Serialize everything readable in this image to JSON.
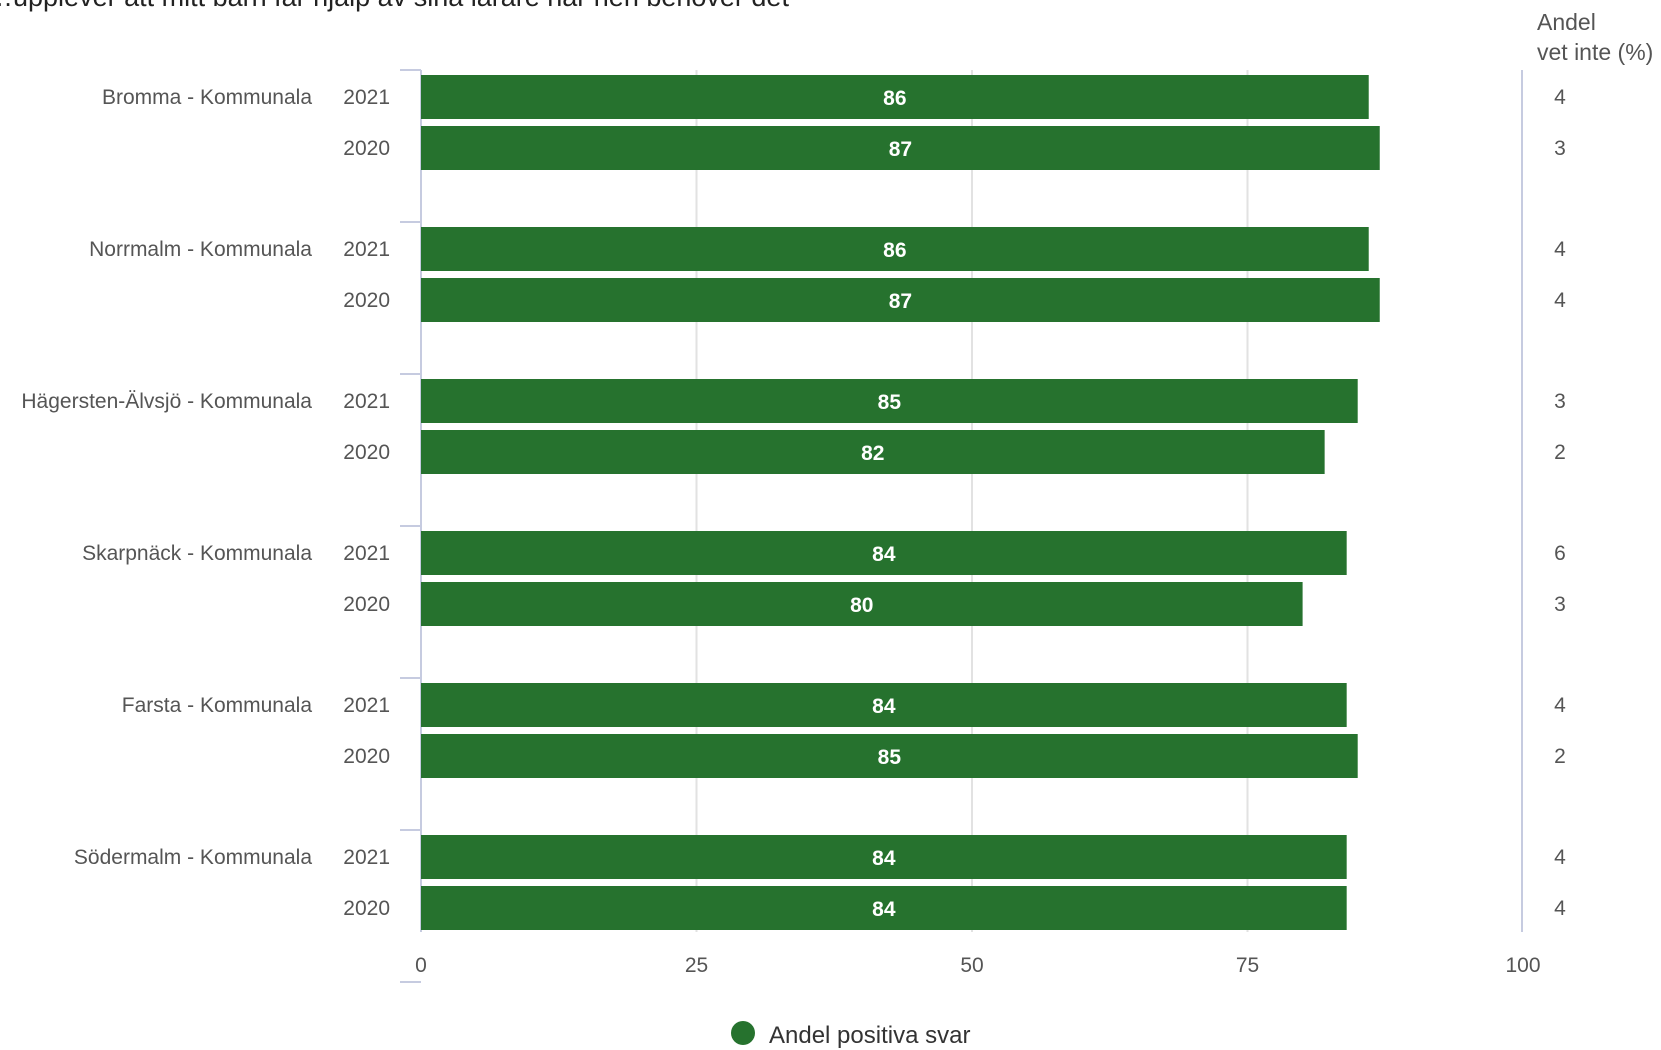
{
  "chart_data": {
    "type": "bar",
    "title": "…upplever att mitt barn får hjälp av sina lärare när hen behöver det",
    "xlim": [
      0,
      100
    ],
    "xticks": [
      "0",
      "25",
      "50",
      "75",
      "100"
    ],
    "grid": true,
    "legend_position": "bottom",
    "categories": [
      {
        "group": "Bromma - Kommunala",
        "years": [
          "2021",
          "2020"
        ],
        "values": [
          86,
          87
        ],
        "vet_inte": [
          4,
          3
        ]
      },
      {
        "group": "Norrmalm - Kommunala",
        "years": [
          "2021",
          "2020"
        ],
        "values": [
          86,
          87
        ],
        "vet_inte": [
          4,
          4
        ]
      },
      {
        "group": "Hägersten-Älvsjö - Kommunala",
        "years": [
          "2021",
          "2020"
        ],
        "values": [
          85,
          82
        ],
        "vet_inte": [
          3,
          2
        ]
      },
      {
        "group": "Skarpnäck - Kommunala",
        "years": [
          "2021",
          "2020"
        ],
        "values": [
          84,
          80
        ],
        "vet_inte": [
          6,
          3
        ]
      },
      {
        "group": "Farsta - Kommunala",
        "years": [
          "2021",
          "2020"
        ],
        "values": [
          84,
          85
        ],
        "vet_inte": [
          4,
          2
        ]
      },
      {
        "group": "Södermalm - Kommunala",
        "years": [
          "2021",
          "2020"
        ],
        "values": [
          84,
          84
        ],
        "vet_inte": [
          4,
          4
        ]
      }
    ],
    "series": [
      {
        "name": "Andel positiva svar",
        "color": "#26722e"
      }
    ],
    "side_column_header": [
      "Andel",
      "vet inte (%)"
    ]
  },
  "colors": {
    "bar": "#26722e",
    "grid": "#e2e2e2",
    "axis": "#c6cbe0",
    "label": "#555555"
  }
}
